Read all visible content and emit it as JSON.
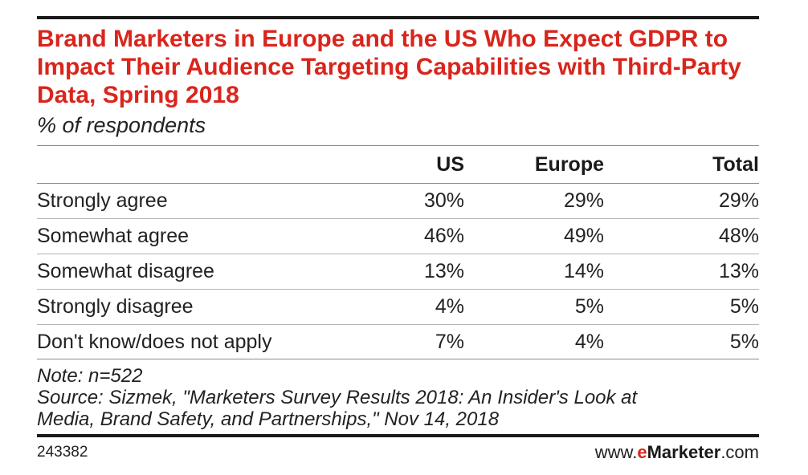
{
  "chart_data": {
    "type": "table",
    "title": "Brand Marketers in Europe and the US Who Expect GDPR to Impact Their Audience Targeting Capabilities with Third-Party Data, Spring 2018",
    "subtitle": "% of respondents",
    "columns": [
      "US",
      "Europe",
      "Total"
    ],
    "rows": [
      {
        "label": "Strongly agree",
        "values": [
          "30%",
          "29%",
          "29%"
        ]
      },
      {
        "label": "Somewhat agree",
        "values": [
          "46%",
          "49%",
          "48%"
        ]
      },
      {
        "label": "Somewhat disagree",
        "values": [
          "13%",
          "14%",
          "13%"
        ]
      },
      {
        "label": "Strongly disagree",
        "values": [
          "4%",
          "5%",
          "5%"
        ]
      },
      {
        "label": "Don't know/does not apply",
        "values": [
          "7%",
          "4%",
          "5%"
        ]
      }
    ],
    "note": "Note: n=522",
    "source_line1": "Source: Sizmek, \"Marketers Survey Results 2018: An Insider's Look at",
    "source_line2": "Media, Brand Safety, and Partnerships,\" Nov 14, 2018"
  },
  "footer": {
    "chart_id": "243382",
    "brand_prefix": "www.",
    "brand_e": "e",
    "brand_name": "Marketer",
    "brand_suffix": ".com"
  },
  "colors": {
    "title": "#d9251c",
    "text": "#1a1a1a"
  }
}
